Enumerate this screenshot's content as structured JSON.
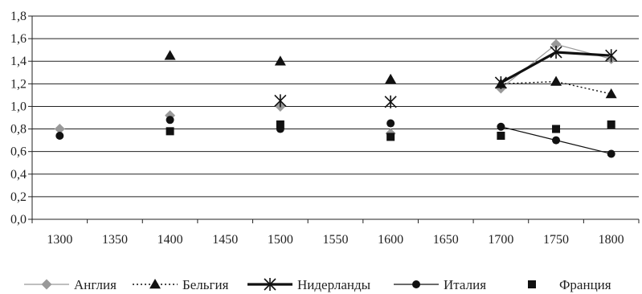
{
  "chart_data": {
    "type": "scatter",
    "title": "",
    "xlabel": "",
    "ylabel": "",
    "categories": [
      "1300",
      "1350",
      "1400",
      "1450",
      "1500",
      "1550",
      "1600",
      "1650",
      "1700",
      "1750",
      "1800"
    ],
    "ylim": [
      0,
      1.8
    ],
    "yticks": [
      "0,0",
      "0,2",
      "0,4",
      "0,6",
      "0,8",
      "1,0",
      "1,2",
      "1,4",
      "1,6",
      "1,8"
    ],
    "grid": "horizontal",
    "legend_position": "bottom",
    "series": [
      {
        "name": "Англия",
        "marker": "diamond",
        "line": "thin-solid",
        "color": "#999999",
        "points": [
          {
            "x": "1300",
            "y": 0.8
          },
          {
            "x": "1400",
            "y": 0.92
          },
          {
            "x": "1500",
            "y": 1.0
          },
          {
            "x": "1600",
            "y": 0.76
          },
          {
            "x": "1700",
            "y": 1.16
          },
          {
            "x": "1750",
            "y": 1.55
          },
          {
            "x": "1800",
            "y": 1.42
          }
        ],
        "connect_from": "1700"
      },
      {
        "name": "Бельгия",
        "marker": "triangle",
        "line": "dotted",
        "color": "#111111",
        "points": [
          {
            "x": "1400",
            "y": 1.45
          },
          {
            "x": "1500",
            "y": 1.4
          },
          {
            "x": "1600",
            "y": 1.24
          },
          {
            "x": "1700",
            "y": 1.2
          },
          {
            "x": "1750",
            "y": 1.22
          },
          {
            "x": "1800",
            "y": 1.11
          }
        ],
        "connect_from": "1700"
      },
      {
        "name": "Нидерланды",
        "marker": "star",
        "line": "thick-solid",
        "color": "#111111",
        "points": [
          {
            "x": "1500",
            "y": 1.05
          },
          {
            "x": "1600",
            "y": 1.04
          },
          {
            "x": "1700",
            "y": 1.21
          },
          {
            "x": "1750",
            "y": 1.48
          },
          {
            "x": "1800",
            "y": 1.45
          }
        ],
        "connect_from": "1700"
      },
      {
        "name": "Италия",
        "marker": "circle",
        "line": "thin-solid",
        "color": "#111111",
        "points": [
          {
            "x": "1300",
            "y": 0.74
          },
          {
            "x": "1400",
            "y": 0.88
          },
          {
            "x": "1500",
            "y": 0.8
          },
          {
            "x": "1600",
            "y": 0.85
          },
          {
            "x": "1700",
            "y": 0.82
          },
          {
            "x": "1750",
            "y": 0.7
          },
          {
            "x": "1800",
            "y": 0.58
          }
        ],
        "connect_from": "1700"
      },
      {
        "name": "Франция",
        "marker": "square",
        "line": "none",
        "color": "#111111",
        "points": [
          {
            "x": "1400",
            "y": 0.78
          },
          {
            "x": "1500",
            "y": 0.84
          },
          {
            "x": "1600",
            "y": 0.73
          },
          {
            "x": "1700",
            "y": 0.74
          },
          {
            "x": "1750",
            "y": 0.8
          },
          {
            "x": "1800",
            "y": 0.84
          }
        ],
        "connect_from": null
      }
    ]
  }
}
